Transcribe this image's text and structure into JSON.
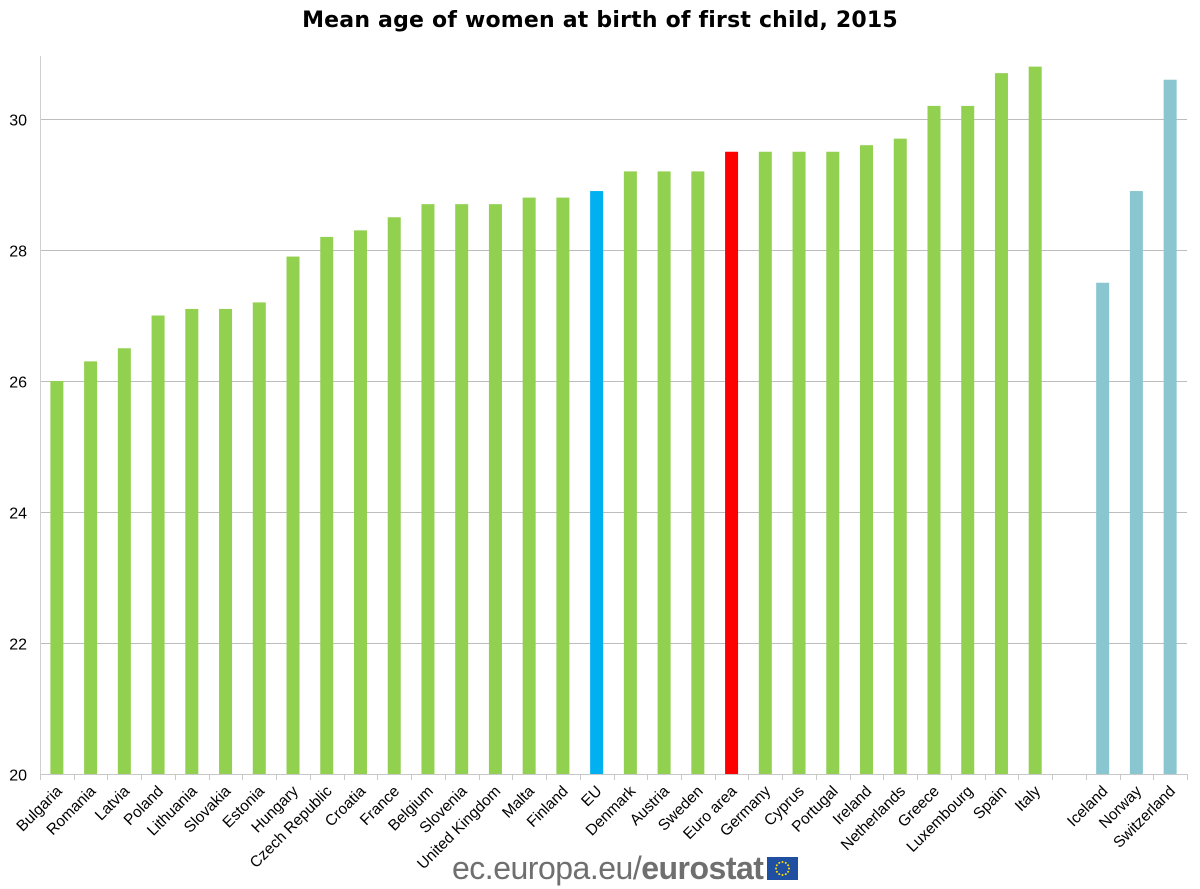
{
  "chart_data": {
    "type": "bar",
    "title": "Mean age of women at birth of first child, 2015",
    "xlabel": "",
    "ylabel": "",
    "ylim": [
      20,
      31
    ],
    "yticks": [
      20,
      22,
      24,
      26,
      28,
      30
    ],
    "grid": true,
    "legend": "none",
    "categories": [
      "Bulgaria",
      "Romania",
      "Latvia",
      "Poland",
      "Lithuania",
      "Slovakia",
      "Estonia",
      "Hungary",
      "Czech Republic",
      "Croatia",
      "France",
      "Belgium",
      "Slovenia",
      "United Kingdom",
      "Malta",
      "Finland",
      "EU",
      "Denmark",
      "Austria",
      "Sweden",
      "Euro area",
      "Germany",
      "Cyprus",
      "Portugal",
      "Ireland",
      "Netherlands",
      "Greece",
      "Luxembourg",
      "Spain",
      "Italy",
      "",
      "Iceland",
      "Norway",
      "Switzerland"
    ],
    "values": [
      26.0,
      26.3,
      26.5,
      27.0,
      27.1,
      27.1,
      27.2,
      27.9,
      28.2,
      28.3,
      28.5,
      28.7,
      28.7,
      28.7,
      28.8,
      28.8,
      28.9,
      29.2,
      29.2,
      29.2,
      29.5,
      29.5,
      29.5,
      29.5,
      29.6,
      29.7,
      30.2,
      30.2,
      30.7,
      30.8,
      null,
      27.5,
      28.9,
      30.6
    ],
    "groups": [
      "member",
      "member",
      "member",
      "member",
      "member",
      "member",
      "member",
      "member",
      "member",
      "member",
      "member",
      "member",
      "member",
      "member",
      "member",
      "member",
      "eu",
      "member",
      "member",
      "member",
      "euro-area",
      "member",
      "member",
      "member",
      "member",
      "member",
      "member",
      "member",
      "member",
      "member",
      "gap",
      "efta",
      "efta",
      "efta"
    ],
    "colors": {
      "member": "#92D050",
      "eu": "#00B0F0",
      "euro-area": "#FF0000",
      "efta": "#8AC6D0"
    }
  },
  "footer": {
    "url": "ec.europa.eu/",
    "brand": "eurostat",
    "flag_icon": "eu-flag-icon"
  }
}
